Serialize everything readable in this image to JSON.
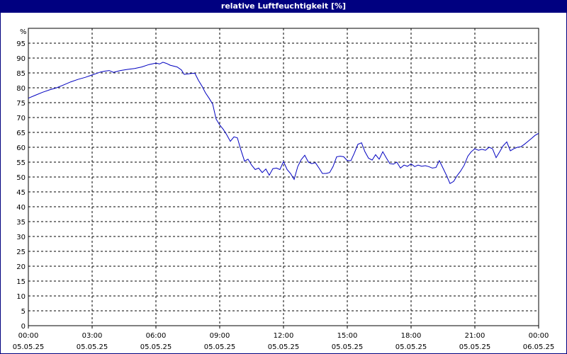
{
  "title": "relative Luftfeuchtigkeit [%]",
  "chart_data": {
    "type": "line",
    "title": "relative Luftfeuchtigkeit [%]",
    "ylabel": "%",
    "ylim": [
      0,
      100
    ],
    "yticks": [
      0,
      5,
      10,
      15,
      20,
      25,
      30,
      35,
      40,
      45,
      50,
      55,
      60,
      65,
      70,
      75,
      80,
      85,
      90,
      95
    ],
    "xlim_hours": [
      0,
      24
    ],
    "xticks": [
      {
        "time": "00:00",
        "date": "05.05.25"
      },
      {
        "time": "03:00",
        "date": "05.05.25"
      },
      {
        "time": "06:00",
        "date": "05.05.25"
      },
      {
        "time": "09:00",
        "date": "05.05.25"
      },
      {
        "time": "12:00",
        "date": "05.05.25"
      },
      {
        "time": "15:00",
        "date": "05.05.25"
      },
      {
        "time": "18:00",
        "date": "05.05.25"
      },
      {
        "time": "21:00",
        "date": "05.05.25"
      },
      {
        "time": "00:00",
        "date": "06.05.25"
      }
    ],
    "grid": true,
    "line_color": "#0000c0",
    "series": [
      {
        "x": [
          0,
          0.33,
          0.67,
          1.0,
          1.33,
          1.67,
          2.0,
          2.33,
          2.67,
          3.0,
          3.2,
          3.4,
          3.6,
          3.8,
          4.0,
          4.33,
          4.67,
          5.0,
          5.33,
          5.67,
          6.0,
          6.17,
          6.33,
          6.5,
          6.67,
          7.0,
          7.2,
          7.33,
          7.67,
          7.83,
          8.0,
          8.17,
          8.33,
          8.5,
          8.67,
          8.83,
          9.0,
          9.17,
          9.33,
          9.5,
          9.67,
          9.83,
          10.0,
          10.17,
          10.33,
          10.5,
          10.67,
          10.83,
          11.0,
          11.17,
          11.33,
          11.5,
          11.67,
          11.83,
          12.0,
          12.17,
          12.33,
          12.5,
          12.67,
          12.83,
          13.0,
          13.17,
          13.33,
          13.5,
          13.67,
          13.83,
          14.0,
          14.17,
          14.33,
          14.5,
          14.67,
          14.83,
          15.0,
          15.17,
          15.33,
          15.5,
          15.67,
          15.83,
          16.0,
          16.17,
          16.33,
          16.5,
          16.67,
          16.83,
          17.0,
          17.17,
          17.33,
          17.5,
          17.67,
          17.83,
          18.0,
          18.17,
          18.33,
          18.5,
          18.67,
          18.83,
          19.0,
          19.17,
          19.33,
          19.5,
          19.67,
          19.83,
          20.0,
          20.17,
          20.33,
          20.5,
          20.67,
          20.83,
          21.0,
          21.17,
          21.33,
          21.5,
          21.67,
          21.83,
          22.0,
          22.17,
          22.33,
          22.5,
          22.67,
          22.83,
          23.0,
          23.17,
          23.33,
          23.5,
          23.67,
          23.83,
          24.0
        ],
        "y": [
          76.5,
          77.5,
          78.5,
          79.3,
          80.0,
          81.0,
          82.0,
          82.8,
          83.5,
          84.3,
          84.8,
          85.3,
          85.6,
          85.8,
          85.2,
          85.8,
          86.2,
          86.5,
          87.0,
          87.8,
          88.3,
          88.0,
          88.6,
          88.2,
          87.6,
          87.0,
          86.0,
          84.5,
          84.8,
          84.9,
          82.5,
          80.5,
          78.3,
          76.5,
          74.5,
          69.5,
          67.5,
          66.0,
          64.2,
          62.0,
          63.5,
          63.2,
          59.0,
          55.3,
          56.0,
          54.0,
          52.5,
          53.0,
          51.5,
          52.7,
          50.6,
          52.8,
          53.0,
          52.5,
          55.2,
          52.5,
          51.2,
          49.2,
          53.5,
          55.8,
          57.3,
          55.0,
          54.5,
          54.8,
          53.0,
          51.2,
          51.2,
          51.5,
          53.5,
          56.8,
          57.0,
          56.8,
          55.5,
          55.5,
          58.0,
          61.0,
          61.5,
          58.5,
          56.3,
          55.7,
          57.5,
          56.0,
          58.5,
          56.5,
          54.5,
          54.3,
          55.0,
          53.0,
          54.0,
          53.6,
          54.4,
          53.5,
          54.0,
          53.6,
          53.8,
          53.5,
          53.0,
          53.2,
          55.5,
          53.0,
          50.5,
          47.8,
          48.5,
          50.5,
          52.0,
          54.0,
          57.0,
          58.5,
          59.5,
          59.0,
          59.3,
          59.0,
          60.0,
          59.5,
          56.5,
          58.5,
          60.5,
          61.8,
          58.8,
          59.5,
          60.0,
          60.2,
          61.0,
          62.0,
          63.0,
          64.0,
          64.7
        ]
      }
    ]
  }
}
